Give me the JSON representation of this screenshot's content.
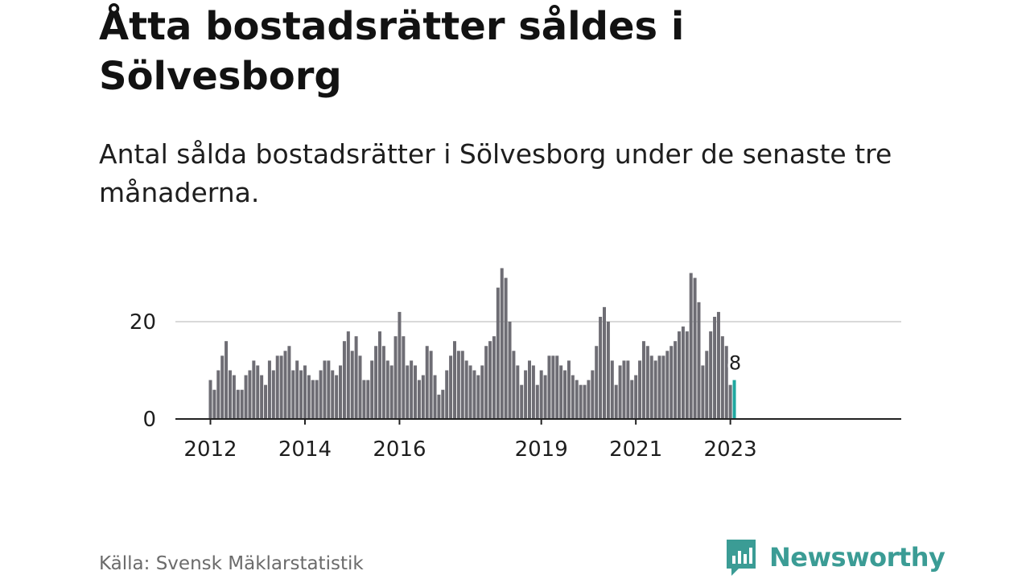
{
  "title": "Åtta bostadsrätter såldes i Sölvesborg",
  "subtitle": "Antal sålda bostadsrätter i Sölvesborg under de senaste tre månaderna.",
  "source": "Källa: Svensk Mäklarstatistik",
  "brand": "Newsworthy",
  "colors": {
    "bars": "#6e6d74",
    "highlight": "#1fa8a0",
    "brand": "#3b9c95",
    "grid": "#d9d9d9",
    "axis": "#222222"
  },
  "chart_data": {
    "type": "bar",
    "xlabel": "",
    "ylabel": "",
    "ylim": [
      0,
      33
    ],
    "yticks": [
      0,
      20
    ],
    "xtick_labels": [
      "2012",
      "2014",
      "2016",
      "2019",
      "2021",
      "2023"
    ],
    "grid": true,
    "series": [
      {
        "values": [
          8,
          6,
          10,
          13,
          16,
          10,
          9,
          6,
          6,
          9,
          10,
          12,
          11,
          9,
          7,
          12,
          10,
          13,
          13,
          14,
          15,
          10,
          12,
          10,
          11,
          9,
          8,
          8,
          10,
          12,
          12,
          10,
          9,
          11,
          16,
          18,
          14,
          17,
          13,
          8,
          8,
          12,
          15,
          18,
          15,
          12,
          11,
          17,
          22,
          17,
          11,
          12,
          11,
          8,
          9,
          15,
          14,
          9,
          5,
          6,
          10,
          13,
          16,
          14,
          14,
          12,
          11,
          10,
          9,
          11,
          15,
          16,
          17,
          27,
          31,
          29,
          20,
          14,
          11,
          7,
          10,
          12,
          11,
          7,
          10,
          9,
          13,
          13,
          13,
          11,
          10,
          12,
          9,
          8,
          7,
          7,
          8,
          10,
          15,
          21,
          23,
          20,
          12,
          7,
          11,
          12,
          12,
          8,
          9,
          12,
          16,
          15,
          13,
          12,
          13,
          13,
          14,
          15,
          16,
          18,
          19,
          18,
          30,
          29,
          24,
          11,
          14,
          18,
          21,
          22,
          17,
          15,
          7,
          8
        ]
      }
    ],
    "highlight_last": 1,
    "annotation": "8"
  }
}
